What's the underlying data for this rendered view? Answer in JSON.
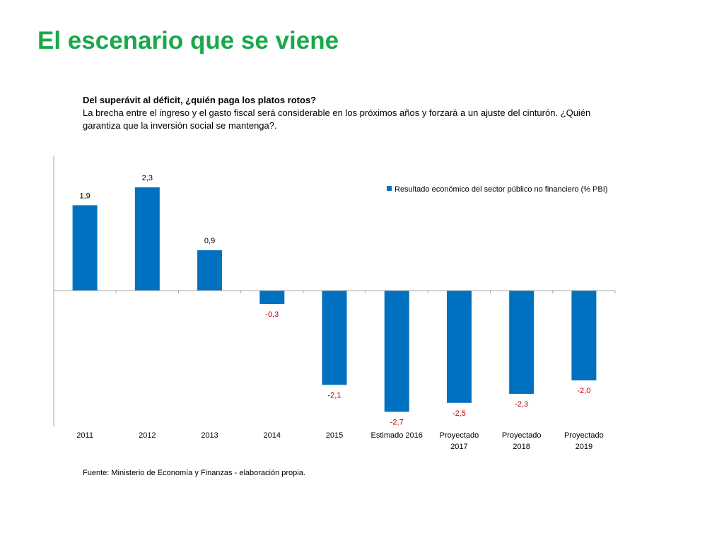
{
  "slide": {
    "title": "El escenario que se viene",
    "heading": "Del superávit al déficit, ¿quién paga los platos rotos?",
    "body": "La brecha entre el ingreso y el gasto fiscal será considerable en los próximos años y forzará a un ajuste del cinturón. ¿Quién garantiza que la inversión social se mantenga?.",
    "source": "Fuente: Ministerio de Economía y Finanzas - elaboración propia."
  },
  "colors": {
    "title": "#1aa84a",
    "bar": "#0070c0",
    "positive_label": "#000000",
    "negative_label": "#c00000",
    "axis": "#a6a6a6"
  },
  "chart_data": {
    "type": "bar",
    "categories": [
      [
        "2011"
      ],
      [
        "2012"
      ],
      [
        "2013"
      ],
      [
        "2014"
      ],
      [
        "2015"
      ],
      [
        "Estimado 2016"
      ],
      [
        "Proyectado",
        "2017"
      ],
      [
        "Proyectado",
        "2018"
      ],
      [
        "Proyectado",
        "2019"
      ]
    ],
    "series": [
      {
        "name": "Resultado económico del sector público no financiero (% PBI)",
        "values": [
          1.9,
          2.3,
          0.9,
          -0.3,
          -2.1,
          -2.7,
          -2.5,
          -2.3,
          -2.0
        ],
        "labels": [
          "1,9",
          "2,3",
          "0,9",
          "-0,3",
          "-2,1",
          "-2,7",
          "-2,5",
          "-2,3",
          "-2,0"
        ]
      }
    ],
    "ylim": [
      -3.0,
      3.0
    ],
    "grid": false,
    "legend_position": "top-right",
    "xlabel": "",
    "ylabel": ""
  }
}
